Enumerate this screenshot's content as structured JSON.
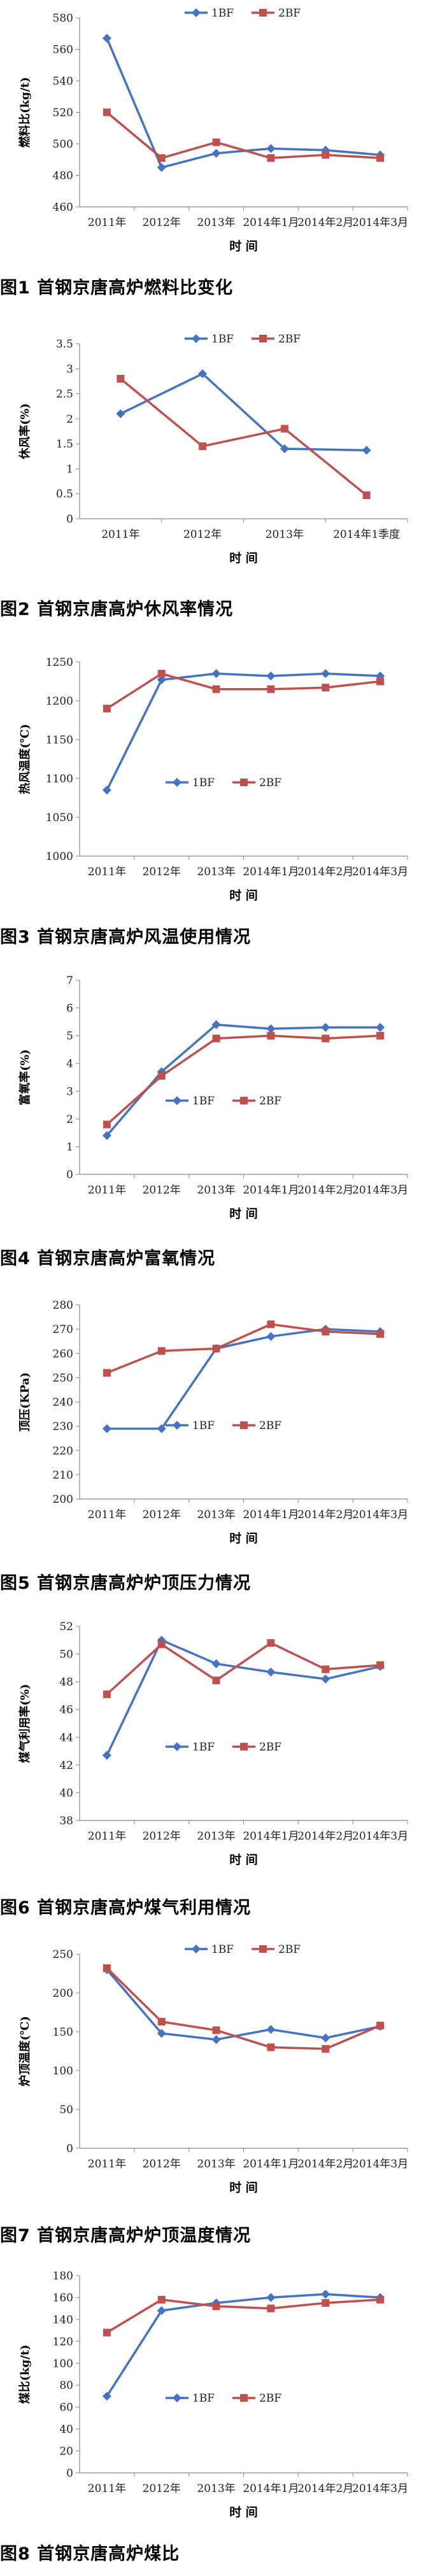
{
  "colors": {
    "s1": "#4472C4",
    "s2": "#C0504D",
    "axis": "#888888",
    "grid": "#e6e6e6"
  },
  "figures": [
    {
      "caption": "图1   首钢京唐高炉燃料比变化",
      "chart_data": {
        "type": "line",
        "ylabel": "燃料比(kg/t)",
        "xlabel": "时  间",
        "categories": [
          "2011年",
          "2012年",
          "2013年",
          "2014年1月",
          "2014年2月",
          "2014年3月"
        ],
        "yticks": [
          460,
          480,
          500,
          520,
          540,
          560,
          580
        ],
        "ylim": [
          460,
          580
        ],
        "legend_position": "top",
        "series": [
          {
            "name": "1BF",
            "values": [
              567,
              485,
              494,
              497,
              496,
              493
            ]
          },
          {
            "name": "2BF",
            "values": [
              520,
              491,
              501,
              491,
              493,
              491
            ]
          }
        ]
      }
    },
    {
      "caption": "图2   首钢京唐高炉休风率情况",
      "chart_data": {
        "type": "line",
        "ylabel": "休风率(%)",
        "xlabel": "时  间",
        "categories": [
          "2011年",
          "2012年",
          "2013年",
          "2014年1季度"
        ],
        "yticks": [
          0,
          0.5,
          1,
          1.5,
          2,
          2.5,
          3,
          3.5
        ],
        "ylim": [
          0,
          3.5
        ],
        "legend_position": "top",
        "series": [
          {
            "name": "1BF",
            "values": [
              2.1,
              2.9,
              1.4,
              1.37
            ]
          },
          {
            "name": "2BF",
            "values": [
              2.8,
              1.45,
              1.8,
              0.47
            ]
          }
        ]
      }
    },
    {
      "caption": "图3   首钢京唐高炉风温使用情况",
      "chart_data": {
        "type": "line",
        "ylabel": "热风温度(℃)",
        "xlabel": "时  间",
        "categories": [
          "2011年",
          "2012年",
          "2013年",
          "2014年1月",
          "2014年2月",
          "2014年3月"
        ],
        "yticks": [
          1000,
          1050,
          1100,
          1150,
          1200,
          1250
        ],
        "ylim": [
          1000,
          1250
        ],
        "legend_position": "center",
        "series": [
          {
            "name": "1BF",
            "values": [
              1085,
              1227,
              1235,
              1232,
              1235,
              1232
            ]
          },
          {
            "name": "2BF",
            "values": [
              1190,
              1235,
              1215,
              1215,
              1217,
              1225
            ]
          }
        ]
      }
    },
    {
      "caption": "图4   首钢京唐高炉富氧情况",
      "chart_data": {
        "type": "line",
        "ylabel": "富氧率(%)",
        "xlabel": "时  间",
        "categories": [
          "2011年",
          "2012年",
          "2013年",
          "2014年1月",
          "2014年2月",
          "2014年3月"
        ],
        "yticks": [
          0,
          1,
          2,
          3,
          4,
          5,
          6,
          7
        ],
        "ylim": [
          0,
          7
        ],
        "legend_position": "center",
        "series": [
          {
            "name": "1BF",
            "values": [
              1.4,
              3.7,
              5.4,
              5.25,
              5.3,
              5.3
            ]
          },
          {
            "name": "2BF",
            "values": [
              1.8,
              3.55,
              4.9,
              5.0,
              4.9,
              5.0
            ]
          }
        ]
      }
    },
    {
      "caption": "图5   首钢京唐高炉炉顶压力情况",
      "chart_data": {
        "type": "line",
        "ylabel": "顶压(KPa)",
        "xlabel": "时  间",
        "categories": [
          "2011年",
          "2012年",
          "2013年",
          "2014年1月",
          "2014年2月",
          "2014年3月"
        ],
        "yticks": [
          200,
          210,
          220,
          230,
          240,
          250,
          260,
          270,
          280
        ],
        "ylim": [
          200,
          280
        ],
        "legend_position": "center",
        "series": [
          {
            "name": "1BF",
            "values": [
              229,
              229,
              262,
              267,
              270,
              269
            ]
          },
          {
            "name": "2BF",
            "values": [
              252,
              261,
              262,
              272,
              269,
              268
            ]
          }
        ]
      }
    },
    {
      "caption": "图6   首钢京唐高炉煤气利用情况",
      "chart_data": {
        "type": "line",
        "ylabel": "煤气利用率(%)",
        "xlabel": "时  间",
        "categories": [
          "2011年",
          "2012年",
          "2013年",
          "2014年1月",
          "2014年2月",
          "2014年3月"
        ],
        "yticks": [
          38,
          40,
          42,
          44,
          46,
          48,
          50,
          52
        ],
        "ylim": [
          38,
          52
        ],
        "legend_position": "center",
        "series": [
          {
            "name": "1BF",
            "values": [
              42.7,
              51.0,
              49.3,
              48.7,
              48.2,
              49.1
            ]
          },
          {
            "name": "2BF",
            "values": [
              47.1,
              50.7,
              48.1,
              50.8,
              48.9,
              49.2
            ]
          }
        ]
      }
    },
    {
      "caption": "图7   首钢京唐高炉炉顶温度情况",
      "chart_data": {
        "type": "line",
        "ylabel": "炉顶温度(℃)",
        "xlabel": "时  间",
        "categories": [
          "2011年",
          "2012年",
          "2013年",
          "2014年1月",
          "2014年2月",
          "2014年3月"
        ],
        "yticks": [
          0,
          50,
          100,
          150,
          200,
          250
        ],
        "ylim": [
          0,
          250
        ],
        "legend_position": "top",
        "series": [
          {
            "name": "1BF",
            "values": [
              230,
              148,
              140,
              153,
              142,
              157
            ]
          },
          {
            "name": "2BF",
            "values": [
              232,
              163,
              152,
              130,
              128,
              158
            ]
          }
        ]
      }
    },
    {
      "caption": "图8   首钢京唐高炉煤比",
      "chart_data": {
        "type": "line",
        "ylabel": "煤比(kg/t)",
        "xlabel": "时  间",
        "categories": [
          "2011年",
          "2012年",
          "2013年",
          "2014年1月",
          "2014年2月",
          "2014年3月"
        ],
        "yticks": [
          0,
          20,
          40,
          60,
          80,
          100,
          120,
          140,
          160,
          180
        ],
        "ylim": [
          0,
          180
        ],
        "legend_position": "center",
        "series": [
          {
            "name": "1BF",
            "values": [
              70,
              148,
              155,
              160,
              163,
              160
            ]
          },
          {
            "name": "2BF",
            "values": [
              128,
              158,
              152,
              150,
              155,
              158
            ]
          }
        ]
      }
    }
  ]
}
